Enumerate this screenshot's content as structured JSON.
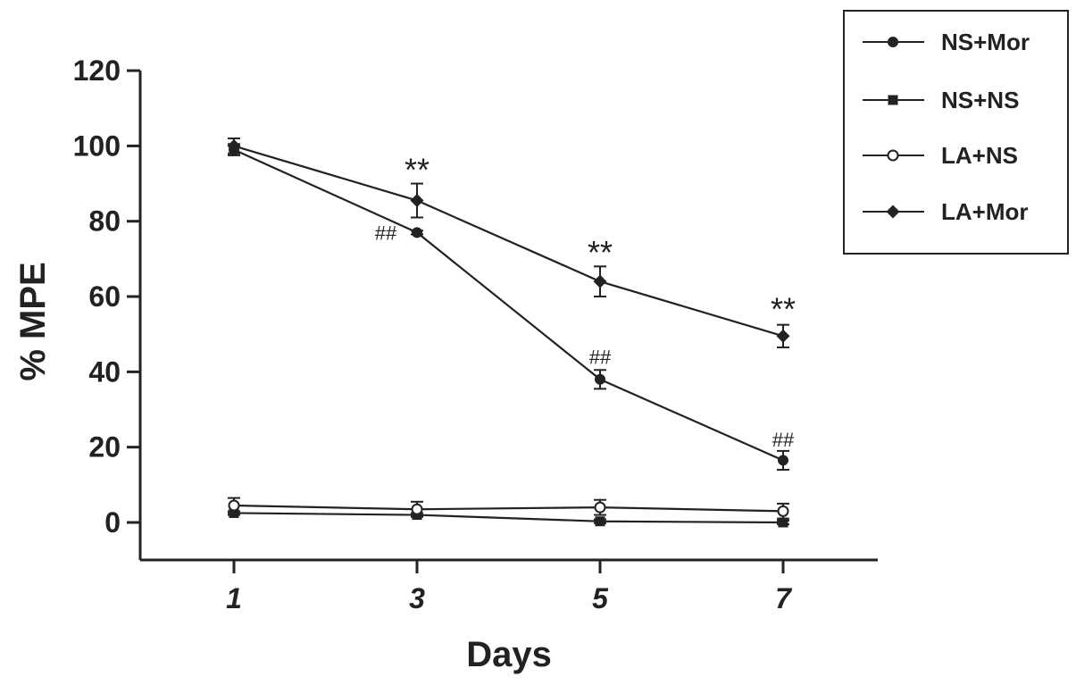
{
  "chart_data": {
    "type": "line",
    "xlabel": "Days",
    "ylabel": "% MPE",
    "x": [
      1,
      3,
      5,
      7
    ],
    "x_tick_labels": [
      "1",
      "3",
      "5",
      "7"
    ],
    "ylim": [
      -10,
      120
    ],
    "y_ticks": [
      0,
      20,
      40,
      60,
      80,
      100,
      120
    ],
    "y_tick_labels": [
      "0",
      "20",
      "40",
      "60",
      "80",
      "100",
      "120"
    ],
    "grid": false,
    "legend_position": "top-right",
    "series": [
      {
        "name": "NS+Mor",
        "marker": "filled-circle",
        "values": [
          99,
          77,
          38,
          16.5
        ],
        "errors": [
          1.5,
          0.5,
          2.5,
          2.5
        ]
      },
      {
        "name": "NS+NS",
        "marker": "filled-square",
        "values": [
          2.5,
          2,
          0.3,
          0
        ],
        "errors": [
          0.5,
          0.5,
          0.5,
          0.5
        ]
      },
      {
        "name": "LA+NS",
        "marker": "open-circle",
        "values": [
          4.5,
          3.5,
          4,
          3
        ],
        "errors": [
          2,
          2,
          2,
          2
        ]
      },
      {
        "name": "LA+Mor",
        "marker": "filled-diamond",
        "values": [
          100,
          85.5,
          64,
          49.5
        ],
        "errors": [
          2,
          4.5,
          4,
          3
        ]
      }
    ],
    "annotations": [
      {
        "text": "**",
        "x": 3,
        "y": 95
      },
      {
        "text": "**",
        "x": 5,
        "y": 73
      },
      {
        "text": "**",
        "x": 7,
        "y": 58
      },
      {
        "text": "##",
        "x": 3,
        "y": 77
      },
      {
        "text": "##",
        "x": 5,
        "y": 44
      },
      {
        "text": "##",
        "x": 7,
        "y": 22
      }
    ]
  }
}
